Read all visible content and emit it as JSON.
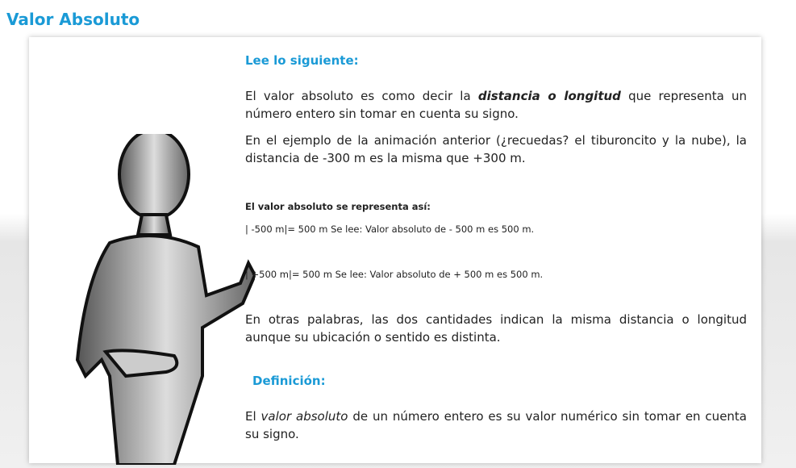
{
  "title": "Valor Absoluto",
  "heading1": "Lee lo siguiente:",
  "p1": {
    "a": "El valor absoluto es como decir la ",
    "b": "distancia o longitud",
    "c": " que representa un número entero sin tomar en cuenta su signo."
  },
  "p2": "En el ejemplo de la animación anterior (¿recuedas? el tiburoncito y la nube), la distancia de -300 m es la misma que +300 m.",
  "rep_title": "El valor absoluto se representa así:",
  "ex1": "| -500 m|= 500 m  Se lee: Valor absoluto de - 500 m es 500 m.",
  "ex2": "| +500 m|= 500 m  Se lee: Valor absoluto de + 500 m es 500 m.",
  "p3": "En otras palabras, las dos cantidades indican la misma distancia o longitud aunque su ubicación o sentido es distinta.",
  "heading2": "Definición:",
  "def": {
    "a": "El ",
    "b": "valor absoluto",
    "c": " de un número entero es su valor numérico sin tomar en cuenta su signo."
  }
}
